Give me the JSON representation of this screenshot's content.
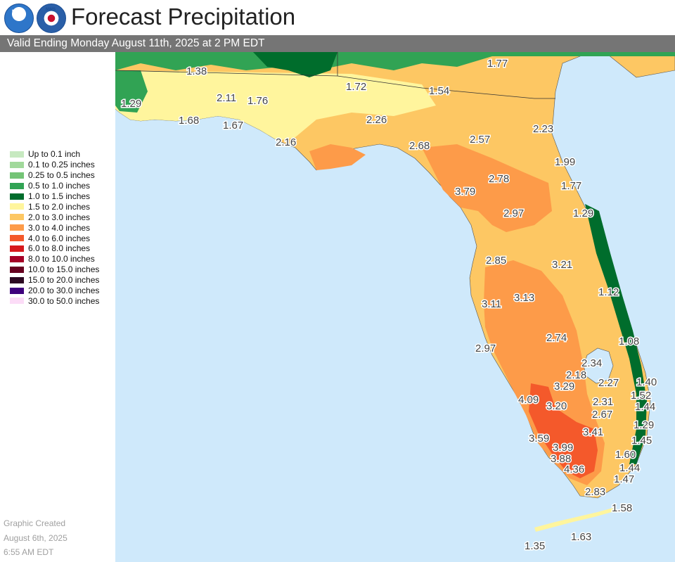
{
  "header": {
    "title": "Forecast Precipitation",
    "subtitle": "Valid Ending Monday August 11th, 2025 at 2 PM EDT",
    "logo_left": "NOAA",
    "logo_right": "NWS"
  },
  "legend": {
    "items": [
      {
        "label": "Up to 0.1 inch",
        "color": "#c7e9c0"
      },
      {
        "label": "0.1 to 0.25 inches",
        "color": "#a1d99b"
      },
      {
        "label": "0.25 to 0.5 inches",
        "color": "#74c476"
      },
      {
        "label": "0.5 to 1.0 inches",
        "color": "#31a354"
      },
      {
        "label": "1.0 to 1.5 inches",
        "color": "#006d2c"
      },
      {
        "label": "1.5 to 2.0 inches",
        "color": "#fff59d"
      },
      {
        "label": "2.0 to 3.0 inches",
        "color": "#fdc763"
      },
      {
        "label": "3.0 to 4.0 inches",
        "color": "#fd9b49"
      },
      {
        "label": "4.0 to 6.0 inches",
        "color": "#f4592b"
      },
      {
        "label": "6.0 to 8.0 inches",
        "color": "#d7191c"
      },
      {
        "label": "8.0 to 10.0 inches",
        "color": "#a50026"
      },
      {
        "label": "10.0 to 15.0 inches",
        "color": "#67001f"
      },
      {
        "label": "15.0 to 20.0 inches",
        "color": "#2d0a22"
      },
      {
        "label": "20.0 to 30.0 inches",
        "color": "#3f007d"
      },
      {
        "label": "30.0 to 50.0 inches",
        "color": "#fcdcf7"
      }
    ]
  },
  "credit": {
    "line1": "Graphic Created",
    "line2": "August 6th, 2025",
    "line3": "6:55 AM EDT"
  },
  "map": {
    "values": [
      "1.38",
      "1.77",
      "1.72",
      "1.54",
      "1.29",
      "2.11",
      "1.76",
      "1.68",
      "1.67",
      "2.26",
      "2.23",
      "2.16",
      "2.68",
      "2.57",
      "1.99",
      "2.78",
      "1.77",
      "3.79",
      "2.97",
      "1.29",
      "2.85",
      "3.21",
      "1.12",
      "3.11",
      "3.13",
      "1.08",
      "2.74",
      "2.97",
      "2.34",
      "2.18",
      "1.40",
      "3.29",
      "2.27",
      "1.52",
      "4.09",
      "3.20",
      "2.31",
      "1.44",
      "2.67",
      "1.29",
      "3.41",
      "3.59",
      "1.45",
      "3.99",
      "1.60",
      "3.88",
      "1.44",
      "4.36",
      "1.47",
      "2.83",
      "1.58",
      "1.63",
      "1.35"
    ],
    "colors": {
      "ocean": "#cfe9fb",
      "land_outside": "#ffffff"
    }
  }
}
